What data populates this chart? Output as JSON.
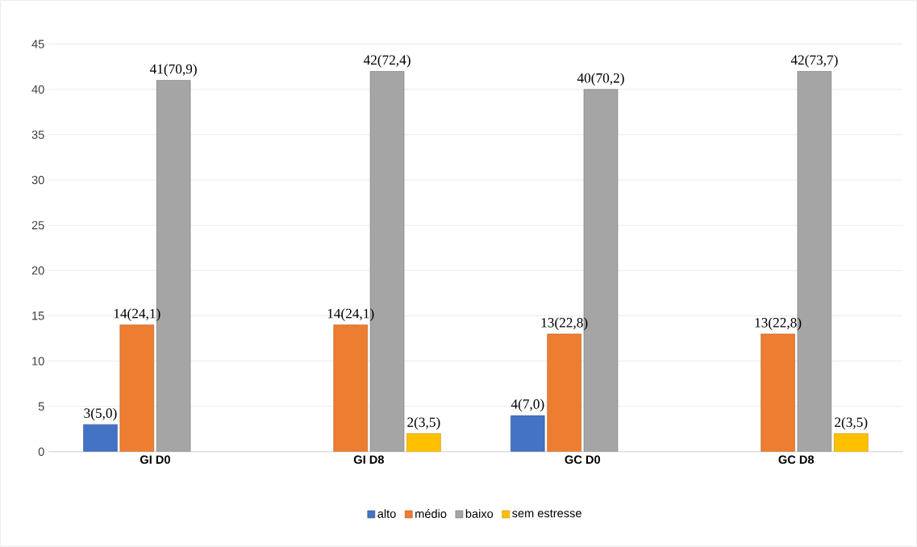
{
  "chart_data": {
    "type": "bar",
    "categories": [
      "GI D0",
      "GI D8",
      "GC D0",
      "GC D8"
    ],
    "series": [
      {
        "name": "alto",
        "color": "#4472c4",
        "values": [
          3,
          null,
          4,
          null
        ],
        "value_labels": [
          "3(5,0)",
          null,
          "4(7,0)",
          null
        ]
      },
      {
        "name": "médio",
        "color": "#ed7d31",
        "values": [
          14,
          14,
          13,
          13
        ],
        "value_labels": [
          "14(24,1)",
          "14(24,1)",
          "13(22,8)",
          "13(22,8)"
        ]
      },
      {
        "name": "baixo",
        "color": "#a5a5a5",
        "values": [
          41,
          42,
          40,
          42
        ],
        "value_labels": [
          "41(70,9)",
          "42(72,4)",
          "40(70,2)",
          "42(73,7)"
        ]
      },
      {
        "name": "sem estresse",
        "color": "#ffc000",
        "values": [
          null,
          2,
          null,
          2
        ],
        "value_labels": [
          null,
          "2(3,5)",
          null,
          "2(3,5)"
        ]
      }
    ],
    "ylim": [
      0,
      45
    ],
    "yticks": [
      0,
      5,
      10,
      15,
      20,
      25,
      30,
      35,
      40,
      45
    ],
    "grid": "y",
    "legend": "bottom"
  }
}
